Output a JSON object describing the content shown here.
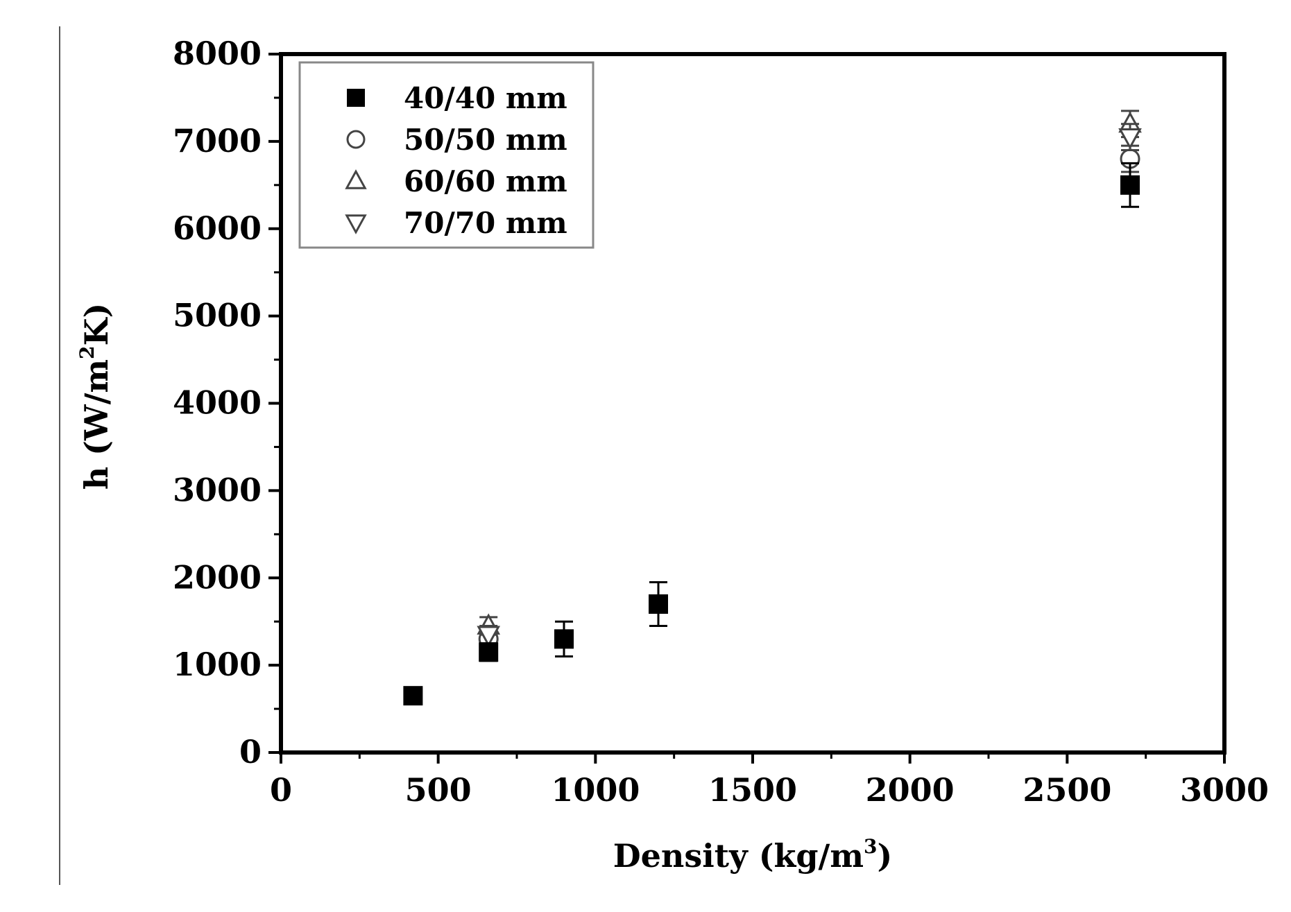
{
  "chart_data": {
    "type": "scatter",
    "title": "",
    "xlabel": "Density (kg/m",
    "xlabel_sup": "3",
    "xlabel_tail": ")",
    "ylabel": "h (W/m",
    "ylabel_sup": "2",
    "ylabel_tail": "K)",
    "xlim": [
      0,
      3000
    ],
    "ylim": [
      0,
      8000
    ],
    "xticks": [
      0,
      500,
      1000,
      1500,
      2000,
      2500,
      3000
    ],
    "xtick_labels": [
      "0",
      "500",
      "1000",
      "1500",
      "2000",
      "2500",
      "3000"
    ],
    "yticks": [
      0,
      1000,
      2000,
      3000,
      4000,
      5000,
      6000,
      7000,
      8000
    ],
    "ytick_labels": [
      "0",
      "1000",
      "2000",
      "3000",
      "4000",
      "5000",
      "6000",
      "7000",
      "8000"
    ],
    "grid": false,
    "legend_position": "top-left",
    "series": [
      {
        "name": "40/40 mm",
        "marker": "filled-square",
        "points": [
          {
            "x": 420,
            "y": 650,
            "err": 60
          },
          {
            "x": 660,
            "y": 1150,
            "err": 100
          },
          {
            "x": 900,
            "y": 1300,
            "err": 200
          },
          {
            "x": 1200,
            "y": 1700,
            "err": 250
          },
          {
            "x": 2700,
            "y": 6500,
            "err": 250
          }
        ]
      },
      {
        "name": "50/50 mm",
        "marker": "open-circle",
        "points": [
          {
            "x": 660,
            "y": 1300,
            "err": 100
          },
          {
            "x": 2700,
            "y": 6800,
            "err": 150
          }
        ]
      },
      {
        "name": "60/60 mm",
        "marker": "open-triangle-up",
        "points": [
          {
            "x": 660,
            "y": 1450,
            "err": 100
          },
          {
            "x": 2700,
            "y": 7200,
            "err": 150
          }
        ]
      },
      {
        "name": "70/70 mm",
        "marker": "open-triangle-down",
        "points": [
          {
            "x": 660,
            "y": 1350,
            "err": 100
          },
          {
            "x": 2700,
            "y": 7050,
            "err": 150
          }
        ]
      }
    ]
  }
}
